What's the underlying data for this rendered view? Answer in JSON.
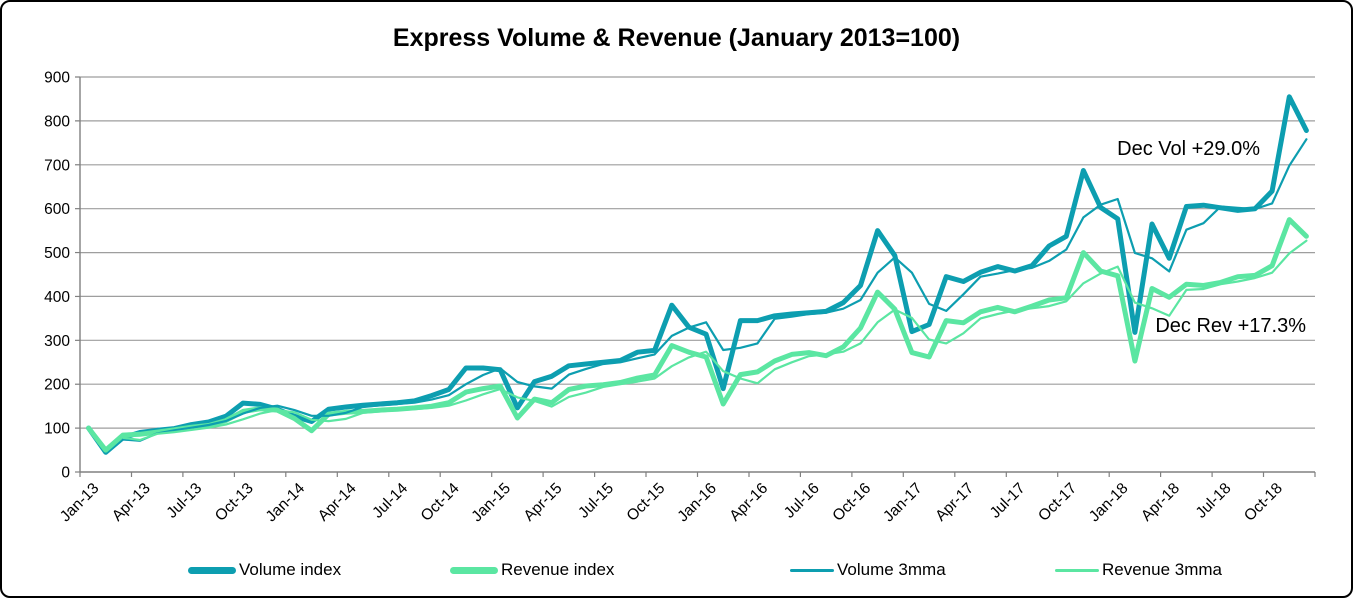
{
  "chart_data": {
    "type": "line",
    "title": "Express Volume & Revenue (January 2013=100)",
    "xlabel": "",
    "ylabel": "",
    "ylim": [
      0,
      900
    ],
    "grid": true,
    "legend_position": "bottom",
    "grid_color": "#9e9e9e",
    "axis_color": "#808080",
    "y_ticks": [
      "0",
      "100",
      "200",
      "300",
      "400",
      "500",
      "600",
      "700",
      "800",
      "900"
    ],
    "x_tick_labels": [
      "Jan-13",
      "Apr-13",
      "Jul-13",
      "Oct-13",
      "Jan-14",
      "Apr-14",
      "Jul-14",
      "Oct-14",
      "Jan-15",
      "Apr-15",
      "Jul-15",
      "Oct-15",
      "Jan-16",
      "Apr-16",
      "Jul-16",
      "Oct-16",
      "Jan-17",
      "Apr-17",
      "Jul-17",
      "Oct-17",
      "Jan-18",
      "Apr-18",
      "Jul-18",
      "Oct-18"
    ],
    "x": [
      "Jan-13",
      "Feb-13",
      "Mar-13",
      "Apr-13",
      "May-13",
      "Jun-13",
      "Jul-13",
      "Aug-13",
      "Sep-13",
      "Oct-13",
      "Nov-13",
      "Dec-13",
      "Jan-14",
      "Feb-14",
      "Mar-14",
      "Apr-14",
      "May-14",
      "Jun-14",
      "Jul-14",
      "Aug-14",
      "Sep-14",
      "Oct-14",
      "Nov-14",
      "Dec-14",
      "Jan-15",
      "Feb-15",
      "Mar-15",
      "Apr-15",
      "May-15",
      "Jun-15",
      "Jul-15",
      "Aug-15",
      "Sep-15",
      "Oct-15",
      "Nov-15",
      "Dec-15",
      "Jan-16",
      "Feb-16",
      "Mar-16",
      "Apr-16",
      "May-16",
      "Jun-16",
      "Jul-16",
      "Aug-16",
      "Sep-16",
      "Oct-16",
      "Nov-16",
      "Dec-16",
      "Jan-17",
      "Feb-17",
      "Mar-17",
      "Apr-17",
      "May-17",
      "Jun-17",
      "Jul-17",
      "Aug-17",
      "Sep-17",
      "Oct-17",
      "Nov-17",
      "Dec-17",
      "Jan-18",
      "Feb-18",
      "Mar-18",
      "Apr-18",
      "May-18",
      "Jun-18",
      "Jul-18",
      "Aug-18",
      "Sep-18",
      "Oct-18",
      "Nov-18",
      "Dec-18"
    ],
    "series": [
      {
        "id": "volume-index",
        "name": "Volume index",
        "color": "#0d9eb0",
        "stroke_width": 5,
        "start_index": 0,
        "values": [
          100,
          45,
          78,
          90,
          95,
          99,
          108,
          114,
          127,
          157,
          154,
          143,
          127,
          115,
          143,
          148,
          152,
          155,
          158,
          162,
          174,
          188,
          237,
          237,
          233,
          146,
          206,
          218,
          242,
          246,
          250,
          254,
          273,
          277,
          380,
          330,
          314,
          190,
          345,
          345,
          356,
          360,
          363,
          366,
          386,
          425,
          550,
          493,
          320,
          336,
          445,
          434,
          455,
          468,
          458,
          470,
          515,
          537,
          687,
          603,
          577,
          318,
          565,
          487,
          605,
          608,
          602,
          596,
          600,
          640,
          855,
          778
        ]
      },
      {
        "id": "revenue-index",
        "name": "Revenue index",
        "color": "#5be6a2",
        "stroke_width": 5,
        "start_index": 0,
        "values": [
          100,
          50,
          84,
          86,
          91,
          96,
          102,
          106,
          117,
          138,
          144,
          141,
          122,
          94,
          132,
          136,
          138,
          141,
          143,
          146,
          150,
          158,
          182,
          190,
          196,
          123,
          166,
          158,
          188,
          196,
          199,
          204,
          214,
          221,
          288,
          273,
          262,
          155,
          222,
          228,
          253,
          268,
          272,
          265,
          285,
          328,
          410,
          371,
          272,
          262,
          345,
          340,
          365,
          375,
          365,
          378,
          392,
          397,
          500,
          458,
          447,
          253,
          418,
          398,
          428,
          425,
          432,
          445,
          448,
          470,
          575,
          537
        ]
      },
      {
        "id": "volume-3mma",
        "name": "Volume 3mma",
        "color": "#0d9eb0",
        "stroke_width": 2.2,
        "start_index": 2,
        "values": [
          74,
          71,
          88,
          95,
          101,
          107,
          116,
          133,
          146,
          151,
          141,
          128,
          128,
          135,
          148,
          152,
          155,
          158,
          165,
          175,
          200,
          221,
          236,
          205,
          195,
          190,
          222,
          235,
          246,
          250,
          259,
          268,
          310,
          329,
          341,
          278,
          283,
          293,
          349,
          354,
          360,
          363,
          372,
          392,
          454,
          489,
          454,
          383,
          367,
          405,
          445,
          452,
          460,
          465,
          481,
          507,
          580,
          609,
          622,
          499,
          487,
          457,
          552,
          567,
          605,
          602,
          599,
          612,
          698,
          758
        ]
      },
      {
        "id": "revenue-3mma",
        "name": "Revenue 3mma",
        "color": "#5be6a2",
        "stroke_width": 2.2,
        "start_index": 2,
        "values": [
          78,
          73,
          87,
          91,
          96,
          101,
          108,
          120,
          133,
          141,
          136,
          119,
          116,
          121,
          135,
          138,
          141,
          143,
          146,
          151,
          163,
          177,
          189,
          170,
          162,
          149,
          171,
          181,
          194,
          200,
          206,
          213,
          241,
          261,
          274,
          230,
          213,
          202,
          234,
          250,
          264,
          268,
          274,
          293,
          341,
          370,
          351,
          302,
          293,
          316,
          350,
          360,
          368,
          373,
          378,
          389,
          430,
          452,
          468,
          386,
          373,
          356,
          415,
          417,
          428,
          434,
          442,
          454,
          498,
          527
        ]
      }
    ],
    "annotations": [
      {
        "text": "Dec Vol +29.0%",
        "near": "Nov-18 volume spike"
      },
      {
        "text": "Dec Rev +17.3%",
        "near": "Feb-18 revenue dip"
      }
    ]
  }
}
